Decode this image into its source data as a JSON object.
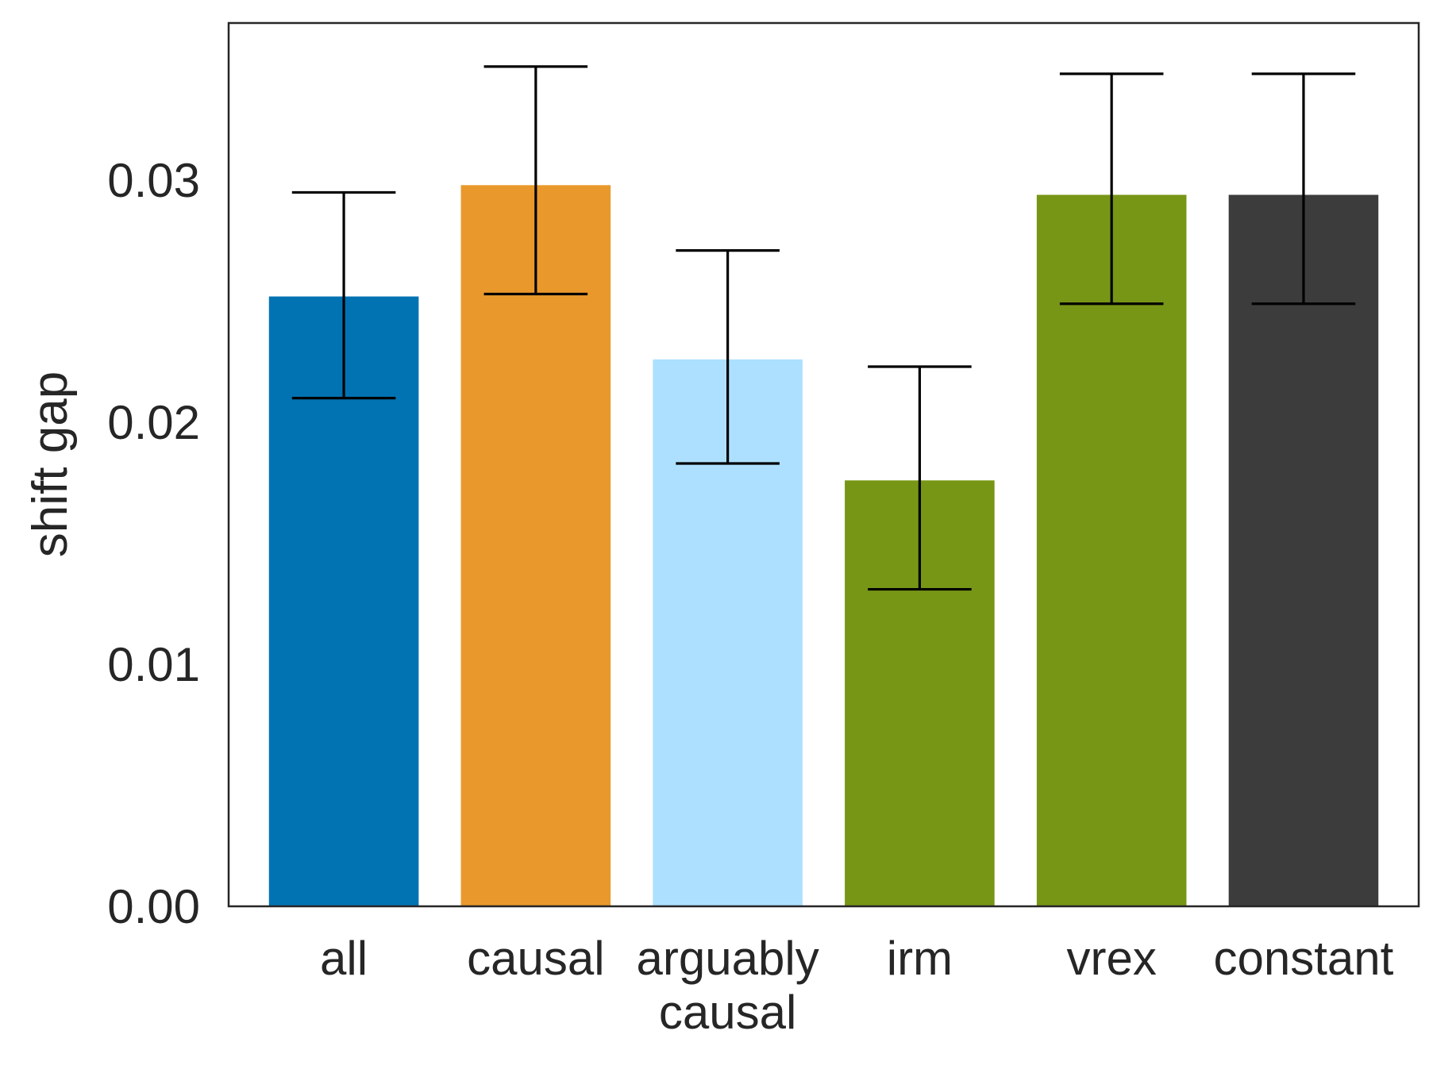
{
  "chart_data": {
    "type": "bar",
    "title": "",
    "xlabel": "",
    "ylabel": "shift gap",
    "ylim": [
      0,
      0.0365
    ],
    "yticks": [
      "0.00",
      "0.01",
      "0.02",
      "0.03"
    ],
    "grid": false,
    "legend": "none",
    "categories": [
      [
        "all"
      ],
      [
        "causal"
      ],
      [
        "arguably",
        "causal"
      ],
      [
        "irm"
      ],
      [
        "vrex"
      ],
      [
        "constant"
      ]
    ],
    "values": [
      0.0252,
      0.0298,
      0.0226,
      0.0176,
      0.0294,
      0.0294
    ],
    "error_low": [
      0.021,
      0.0253,
      0.0183,
      0.0131,
      0.0249,
      0.0249
    ],
    "error_high": [
      0.0295,
      0.0347,
      0.0271,
      0.0223,
      0.0344,
      0.0344
    ],
    "colors": [
      "#0173b2",
      "#e9992b",
      "#ade0fe",
      "#789616",
      "#789616",
      "#3c3c3c"
    ],
    "error_color": "#000000",
    "axis_color": "#262626"
  }
}
